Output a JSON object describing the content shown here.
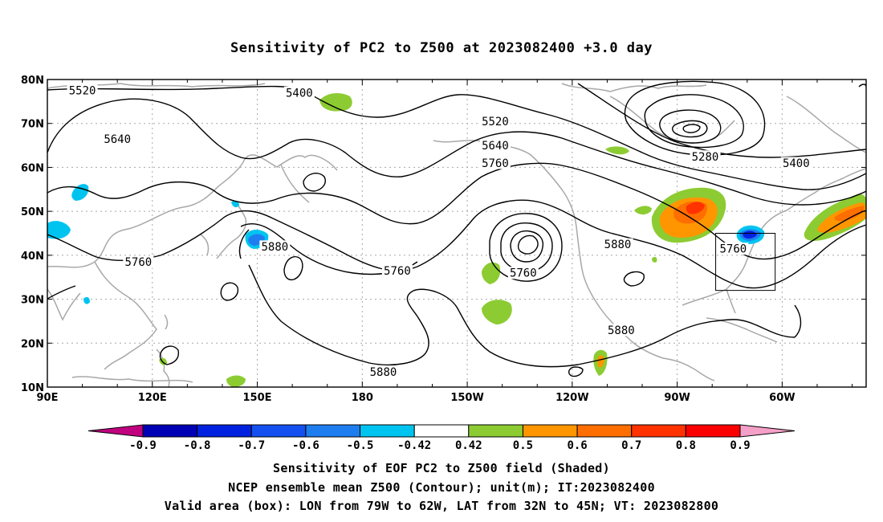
{
  "title": "Sensitivity of PC2 to Z500 at 2023082400 +3.0 day",
  "axes": {
    "lat_labels": [
      "80N",
      "70N",
      "60N",
      "50N",
      "40N",
      "30N",
      "20N",
      "10N"
    ],
    "lon_labels": [
      "90E",
      "120E",
      "150E",
      "180",
      "150W",
      "120W",
      "90W",
      "60W"
    ]
  },
  "contour_labels": [
    {
      "text": "5520",
      "lon": 100,
      "lat": 77.5
    },
    {
      "text": "5640",
      "lon": 110,
      "lat": 66.5
    },
    {
      "text": "5400",
      "lon": 162,
      "lat": 77
    },
    {
      "text": "5520",
      "lon": 218,
      "lat": 70.5
    },
    {
      "text": "5640",
      "lon": 218,
      "lat": 65
    },
    {
      "text": "5760",
      "lon": 218,
      "lat": 61
    },
    {
      "text": "5280",
      "lon": 278,
      "lat": 62.5
    },
    {
      "text": "5400",
      "lon": 304,
      "lat": 61
    },
    {
      "text": "5880",
      "lon": 155,
      "lat": 42
    },
    {
      "text": "5760",
      "lon": 116,
      "lat": 38.5
    },
    {
      "text": "5760",
      "lon": 190,
      "lat": 36.5
    },
    {
      "text": "5760",
      "lon": 226,
      "lat": 36
    },
    {
      "text": "5880",
      "lon": 253,
      "lat": 42.5
    },
    {
      "text": "5760",
      "lon": 286,
      "lat": 41.5
    },
    {
      "text": "5880",
      "lon": 254,
      "lat": 23
    },
    {
      "text": "5880",
      "lon": 186,
      "lat": 13.5
    }
  ],
  "colorbar": {
    "tick_labels": [
      "-0.9",
      "-0.8",
      "-0.7",
      "-0.6",
      "-0.5",
      "-0.42",
      "0.42",
      "0.5",
      "0.6",
      "0.7",
      "0.8",
      "0.9"
    ],
    "colors": [
      "#c0007f",
      "#0000b4",
      "#0022e0",
      "#1450f0",
      "#1e7ef0",
      "#00c4f0",
      "#ffffff",
      "#8ccc32",
      "#ff9600",
      "#ff6e00",
      "#ff3200",
      "#fa0000",
      "#f5a0c8"
    ]
  },
  "valid_box": {
    "lon_from": -79,
    "lon_to": -62,
    "lat_from": 32,
    "lat_to": 45
  },
  "captions": {
    "line1": "Sensitivity of EOF PC2 to Z500 field (Shaded)",
    "line2": "NCEP ensemble mean Z500 (Contour); unit(m); IT:2023082400",
    "line3": "Valid area (box): LON from 79W to 62W, LAT from 32N to 45N; VT: 2023082800"
  }
}
